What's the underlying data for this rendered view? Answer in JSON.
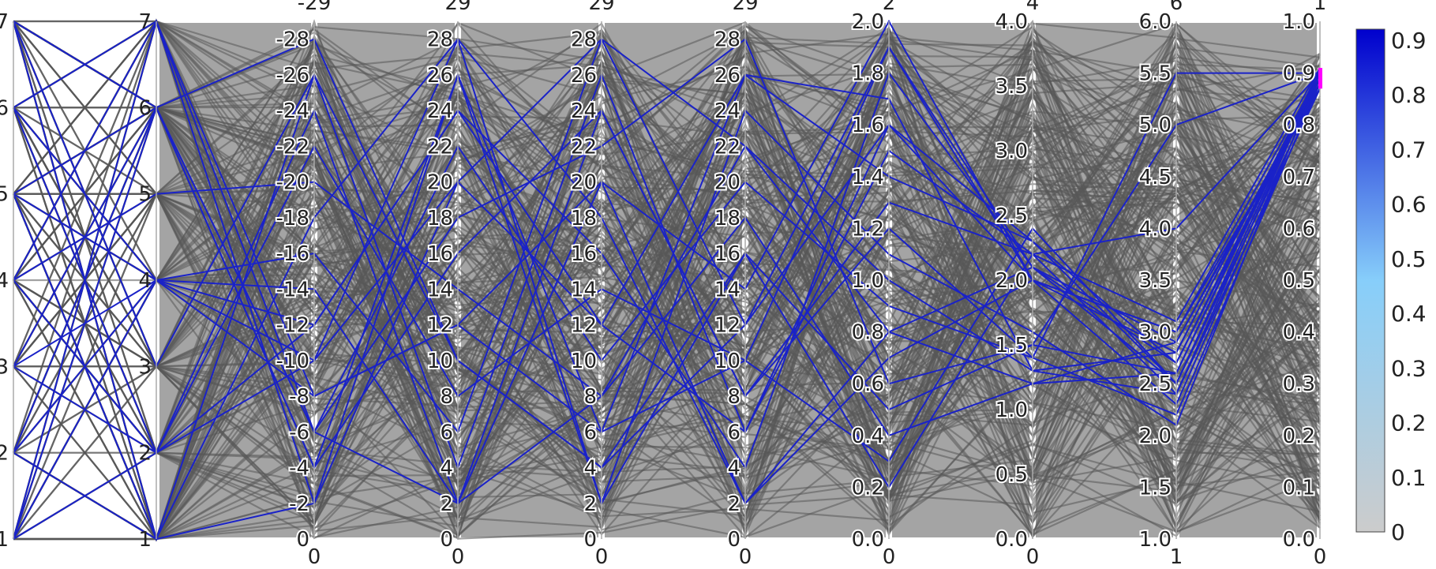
{
  "chart_data": {
    "type": "parallel_coordinates",
    "axes": [
      {
        "range": [
          1,
          7
        ],
        "ticks": [
          "1",
          "2",
          "3",
          "4",
          "5",
          "6",
          "7"
        ]
      },
      {
        "range": [
          1,
          7
        ],
        "ticks": [
          "1",
          "2",
          "3",
          "4",
          "5",
          "6",
          "7"
        ]
      },
      {
        "range": [
          0,
          29
        ],
        "top_label": "-29",
        "bottom_label": "0",
        "ticks": [
          "0",
          "-2",
          "-4",
          "-6",
          "-8",
          "-10",
          "-12",
          "-14",
          "-16",
          "-18",
          "-20",
          "-22",
          "-24",
          "-26",
          "-28"
        ]
      },
      {
        "range": [
          0,
          29
        ],
        "top_label": "29",
        "bottom_label": "0",
        "ticks": [
          "0",
          "2",
          "4",
          "6",
          "8",
          "10",
          "12",
          "14",
          "16",
          "18",
          "20",
          "22",
          "24",
          "26",
          "28"
        ]
      },
      {
        "range": [
          0,
          29
        ],
        "top_label": "29",
        "bottom_label": "0",
        "ticks": [
          "0",
          "2",
          "4",
          "6",
          "8",
          "10",
          "12",
          "14",
          "16",
          "18",
          "20",
          "22",
          "24",
          "26",
          "28"
        ]
      },
      {
        "range": [
          0,
          29
        ],
        "top_label": "29",
        "bottom_label": "0",
        "ticks": [
          "0",
          "2",
          "4",
          "6",
          "8",
          "10",
          "12",
          "14",
          "16",
          "18",
          "20",
          "22",
          "24",
          "26",
          "28"
        ]
      },
      {
        "range": [
          0,
          2
        ],
        "top_label": "2",
        "bottom_label": "0",
        "ticks": [
          "0.0",
          "0.2",
          "0.4",
          "0.6",
          "0.8",
          "1.0",
          "1.2",
          "1.4",
          "1.6",
          "1.8",
          "2.0"
        ]
      },
      {
        "range": [
          0,
          4
        ],
        "top_label": "4",
        "bottom_label": "0",
        "ticks": [
          "0.0",
          "0.5",
          "1.0",
          "1.5",
          "2.0",
          "2.5",
          "3.0",
          "3.5",
          "4.0"
        ]
      },
      {
        "range": [
          1,
          6
        ],
        "top_label": "6",
        "bottom_label": "1",
        "ticks": [
          "1.0",
          "1.5",
          "2.0",
          "2.5",
          "3.0",
          "3.5",
          "4.0",
          "4.5",
          "5.0",
          "5.5",
          "6.0"
        ]
      },
      {
        "range": [
          0,
          1
        ],
        "top_label": "1",
        "bottom_label": "0",
        "ticks": [
          "0.0",
          "0.1",
          "0.2",
          "0.3",
          "0.4",
          "0.5",
          "0.6",
          "0.7",
          "0.8",
          "0.9",
          "1.0"
        ],
        "constraint_range": [
          0.87,
          0.91
        ]
      }
    ],
    "colorscale": {
      "range": [
        0,
        0.92
      ],
      "ticks": [
        "0",
        "0.1",
        "0.2",
        "0.3",
        "0.4",
        "0.5",
        "0.6",
        "0.7",
        "0.8",
        "0.9"
      ],
      "colors": [
        "#cccccc",
        "#87cefa",
        "#0000cd"
      ]
    },
    "colors": {
      "context_lines": "#555555",
      "highlight_lines": "#1a22c8",
      "constraint_marker": "#ff00ff",
      "axis_line": "#aaaaaa"
    },
    "highlighted_lines": [
      [
        1,
        7,
        -8,
        12,
        20,
        2,
        0.8,
        2.1,
        2.5,
        0.9
      ],
      [
        1,
        6,
        -4,
        26,
        6,
        10,
        1.9,
        2.0,
        3.0,
        0.9
      ],
      [
        1,
        2,
        -24,
        2,
        24,
        8,
        1.2,
        1.4,
        2.2,
        0.88
      ],
      [
        2,
        4,
        -10,
        28,
        2,
        16,
        0.2,
        2.2,
        4.0,
        0.9
      ],
      [
        2,
        1,
        -2,
        20,
        12,
        26,
        1.4,
        2.3,
        2.7,
        0.89
      ],
      [
        3,
        4,
        -16,
        6,
        28,
        22,
        1.0,
        1.3,
        2.4,
        0.87
      ],
      [
        3,
        6,
        -28,
        10,
        4,
        12,
        1.6,
        2.0,
        2.8,
        0.9
      ],
      [
        4,
        7,
        -6,
        18,
        22,
        28,
        0.6,
        1.5,
        5.0,
        0.9
      ],
      [
        4,
        2,
        -12,
        24,
        16,
        4,
        1.8,
        2.1,
        2.9,
        0.88
      ],
      [
        4,
        5,
        -20,
        14,
        8,
        18,
        0.4,
        1.2,
        2.6,
        0.9
      ],
      [
        5,
        1,
        -26,
        4,
        26,
        6,
        1.5,
        2.2,
        3.1,
        0.91
      ],
      [
        5,
        6,
        -6,
        22,
        10,
        20,
        0.9,
        1.4,
        5.5,
        0.9
      ],
      [
        5,
        4,
        -14,
        2,
        20,
        14,
        2.0,
        2.0,
        2.3,
        0.89
      ],
      [
        6,
        7,
        -2,
        26,
        2,
        24,
        1.1,
        1.6,
        2.1,
        0.9
      ],
      [
        6,
        2,
        -22,
        8,
        14,
        10,
        0.3,
        2.4,
        2.5,
        0.88
      ],
      [
        6,
        4,
        -8,
        12,
        6,
        26,
        1.7,
        1.3,
        2.8,
        0.9
      ],
      [
        7,
        1,
        -18,
        28,
        18,
        2,
        0.7,
        2.0,
        3.0,
        0.87
      ],
      [
        7,
        6,
        -4,
        16,
        24,
        8,
        1.3,
        2.2,
        2.4,
        0.9
      ],
      [
        7,
        3,
        -26,
        10,
        4,
        16,
        0.5,
        1.5,
        2.6,
        0.91
      ],
      [
        3,
        2,
        -10,
        20,
        28,
        12,
        1.9,
        2.1,
        2.7,
        0.9
      ],
      [
        2,
        6,
        -6,
        2,
        8,
        22,
        0.8,
        1.2,
        2.9,
        0.89
      ],
      [
        1,
        4,
        -12,
        24,
        12,
        6,
        1.6,
        2.3,
        2.5,
        0.9
      ]
    ]
  }
}
